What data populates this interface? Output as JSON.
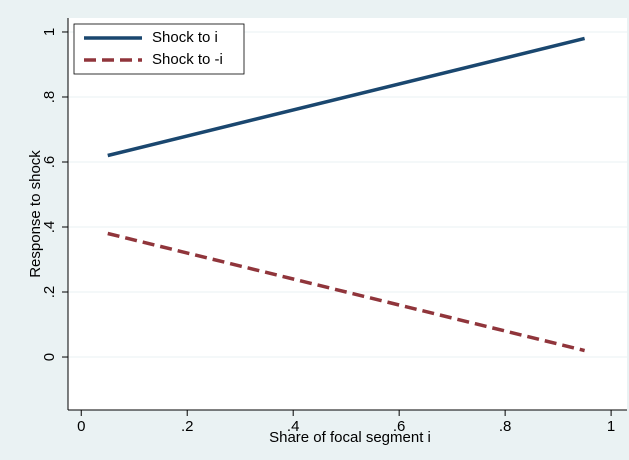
{
  "chart_data": {
    "type": "line",
    "x_label": "Share of focal segment i",
    "y_label": "Response to shock",
    "x": [
      0.05,
      0.95
    ],
    "series": [
      {
        "name": "Shock to i",
        "color": "#1a476f",
        "dash": "solid",
        "values": [
          0.62,
          0.98
        ]
      },
      {
        "name": "Shock to -i",
        "color": "#90353b",
        "dash": "dashed",
        "values": [
          0.38,
          0.02
        ]
      }
    ],
    "xlim": [
      -0.025,
      1.03
    ],
    "ylim": [
      -0.163,
      1.043
    ],
    "xticks": [
      0,
      {
        "value": 0.2,
        "label": ".2"
      },
      {
        "value": 0.4,
        "label": ".4"
      },
      {
        "value": 0.6,
        "label": ".6"
      },
      {
        "value": 0.8,
        "label": ".8"
      },
      1
    ],
    "yticks": [
      0,
      {
        "value": 0.2,
        "label": ".2"
      },
      {
        "value": 0.4,
        "label": ".4"
      },
      {
        "value": 0.6,
        "label": ".6"
      },
      {
        "value": 0.8,
        "label": ".8"
      },
      1
    ],
    "grid": true,
    "legend": "top-left"
  }
}
